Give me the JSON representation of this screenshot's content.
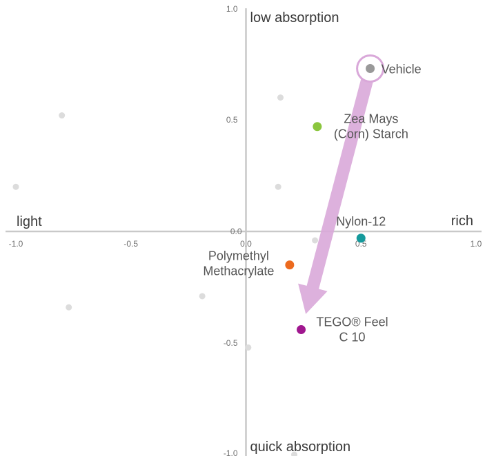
{
  "chart_data": {
    "type": "scatter",
    "title": "",
    "xlim": [
      -1.0,
      1.0
    ],
    "ylim": [
      -1.0,
      1.0
    ],
    "grid": false,
    "axis_labels": {
      "x_negative": "light",
      "x_positive": "rich",
      "y_positive": "low absorption",
      "y_negative": "quick absorption"
    },
    "x_ticks": [
      {
        "value": -1.0,
        "label": "-1.0"
      },
      {
        "value": -0.5,
        "label": "-0.5"
      },
      {
        "value": 0.0,
        "label": "0.0"
      },
      {
        "value": 0.5,
        "label": "0.5"
      },
      {
        "value": 1.0,
        "label": "1.0"
      }
    ],
    "y_ticks": [
      {
        "value": 1.0,
        "label": "1.0"
      },
      {
        "value": 0.5,
        "label": "0.5"
      },
      {
        "value": 0.0,
        "label": "0.0"
      },
      {
        "value": -0.5,
        "label": "-0.5"
      },
      {
        "value": -1.0,
        "label": "-1.0"
      }
    ],
    "highlighted_points": [
      {
        "id": "vehicle",
        "lines": [
          "Vehicle"
        ],
        "x": 0.54,
        "y": 0.73,
        "color": "#999999",
        "ring": true
      },
      {
        "id": "zea-mays",
        "lines": [
          "Zea Mays",
          "(Corn) Starch"
        ],
        "x": 0.31,
        "y": 0.47,
        "color": "#8bc63e"
      },
      {
        "id": "nylon-12",
        "lines": [
          "Nylon-12"
        ],
        "x": 0.5,
        "y": -0.03,
        "color": "#159a9c"
      },
      {
        "id": "pmma",
        "lines": [
          "Polymethyl",
          "Methacrylate"
        ],
        "x": 0.19,
        "y": -0.15,
        "color": "#ec6a1e"
      },
      {
        "id": "tego",
        "lines": [
          "TEGO® Feel",
          "C 10"
        ],
        "x": 0.24,
        "y": -0.44,
        "color": "#a0178f"
      }
    ],
    "background_points": [
      {
        "x": -0.8,
        "y": 0.52
      },
      {
        "x": -1.0,
        "y": 0.2
      },
      {
        "x": 0.15,
        "y": 0.6
      },
      {
        "x": 0.14,
        "y": 0.2
      },
      {
        "x": -0.77,
        "y": -0.34
      },
      {
        "x": -0.19,
        "y": -0.29
      },
      {
        "x": 0.01,
        "y": -0.52
      },
      {
        "x": 0.3,
        "y": -0.04
      },
      {
        "x": 0.21,
        "y": -1.0
      }
    ],
    "arrow": {
      "from": [
        0.54,
        0.73
      ],
      "to": [
        0.26,
        -0.37
      ],
      "color": "#d9a8d9"
    }
  }
}
